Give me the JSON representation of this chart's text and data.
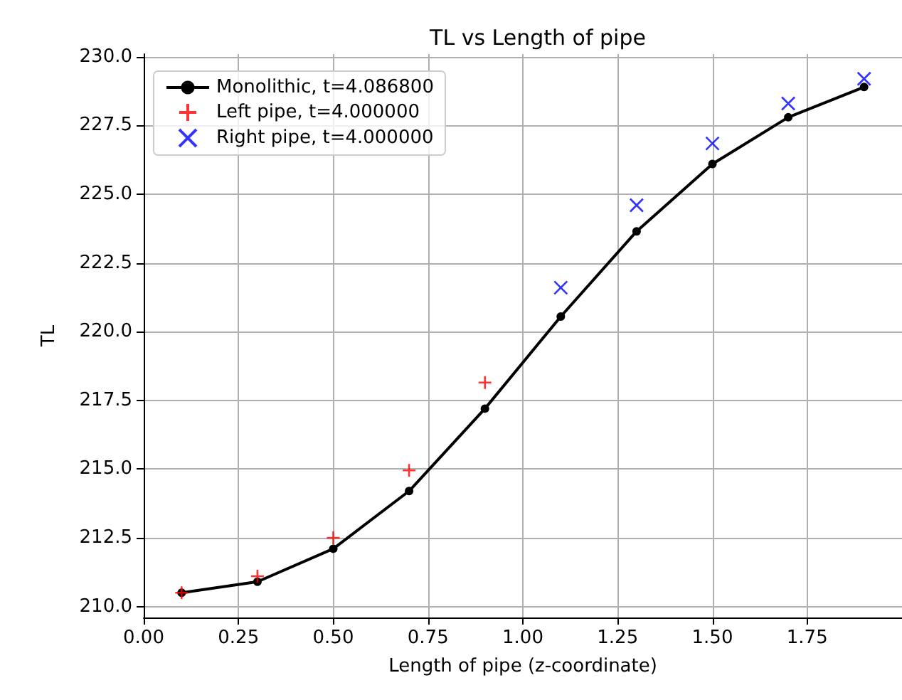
{
  "chart_data": {
    "type": "line",
    "title": "TL vs Length of pipe",
    "xlabel": "Length of pipe (z-coordinate)",
    "ylabel": "TL",
    "xlim": [
      0,
      2
    ],
    "xticks": [
      {
        "value": 0,
        "label": "0.00"
      },
      {
        "value": 0.25,
        "label": "0.25"
      },
      {
        "value": 0.5,
        "label": "0.50"
      },
      {
        "value": 0.75,
        "label": "0.75"
      },
      {
        "value": 1,
        "label": "1.00"
      },
      {
        "value": 1.25,
        "label": "1.25"
      },
      {
        "value": 1.5,
        "label": "1.50"
      },
      {
        "value": 1.75,
        "label": "1.75"
      }
    ],
    "ylim": [
      209.6,
      230.1
    ],
    "yticks": [
      {
        "value": 210,
        "label": "210.0"
      },
      {
        "value": 212.5,
        "label": "212.5"
      },
      {
        "value": 215,
        "label": "215.0"
      },
      {
        "value": 217.5,
        "label": "217.5"
      },
      {
        "value": 220,
        "label": "220.0"
      },
      {
        "value": 222.5,
        "label": "222.5"
      },
      {
        "value": 225,
        "label": "225.0"
      },
      {
        "value": 227.5,
        "label": "227.5"
      },
      {
        "value": 230,
        "label": "230.0"
      }
    ],
    "grid": true,
    "legend": "top left",
    "series": [
      {
        "name": "Monolithic, t=4.086800",
        "marker": "circle",
        "line_style": "solid",
        "color": "#000000",
        "x": [
          0.1,
          0.3,
          0.5,
          0.7,
          0.9,
          1.1,
          1.3,
          1.5,
          1.7,
          1.9
        ],
        "values": [
          210.5,
          210.9,
          212.1,
          214.2,
          217.2,
          220.55,
          223.65,
          226.1,
          227.8,
          228.9
        ]
      },
      {
        "name": "Left pipe, t=4.000000",
        "type": "scatter",
        "marker": "plus",
        "color": "#ff0000",
        "x": [
          0.1,
          0.3,
          0.5,
          0.7,
          0.9
        ],
        "values": [
          210.5,
          211.1,
          212.5,
          214.95,
          218.15
        ]
      },
      {
        "name": "Right pipe, t=4.000000",
        "type": "scatter",
        "marker": "cross",
        "color": "#0000ff",
        "x": [
          1.1,
          1.3,
          1.5,
          1.7,
          1.9
        ],
        "values": [
          221.6,
          224.6,
          226.85,
          228.3,
          229.2
        ]
      }
    ]
  }
}
